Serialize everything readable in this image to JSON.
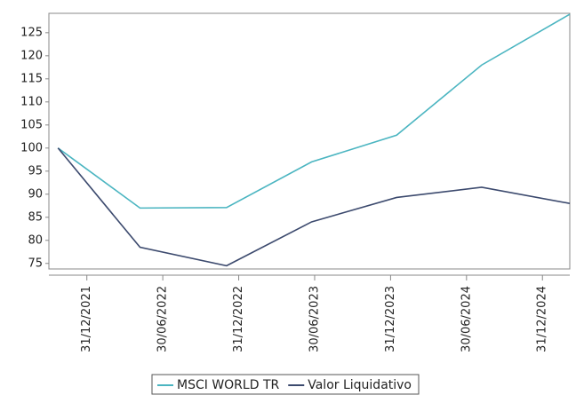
{
  "chart_data": {
    "type": "line",
    "x": [
      2021.81,
      2022.35,
      2022.92,
      2023.48,
      2024.04,
      2024.6,
      2025.18
    ],
    "series": [
      {
        "name": "MSCI WORLD TR",
        "color": "#4bb5c1",
        "values": [
          100,
          87,
          87.1,
          97,
          102.8,
          118,
          129
        ]
      },
      {
        "name": "Valor Liquidativo",
        "color": "#3c4a6e",
        "values": [
          100,
          78.5,
          74.5,
          84,
          89.3,
          91.5,
          88
        ]
      }
    ],
    "xlim": [
      2021.75,
      2025.18
    ],
    "xticks": [
      {
        "value": 2022.0,
        "label": "31/12/2021"
      },
      {
        "value": 2022.5,
        "label": "30/06/2022"
      },
      {
        "value": 2023.0,
        "label": "31/12/2022"
      },
      {
        "value": 2023.5,
        "label": "30/06/2023"
      },
      {
        "value": 2024.0,
        "label": "31/12/2023"
      },
      {
        "value": 2024.5,
        "label": "30/06/2024"
      },
      {
        "value": 2025.0,
        "label": "31/12/2024"
      }
    ],
    "ylim": [
      73.8,
      129.2
    ],
    "yticks": [
      75,
      80,
      85,
      90,
      95,
      100,
      105,
      110,
      115,
      120,
      125
    ],
    "legend": "bottom"
  }
}
